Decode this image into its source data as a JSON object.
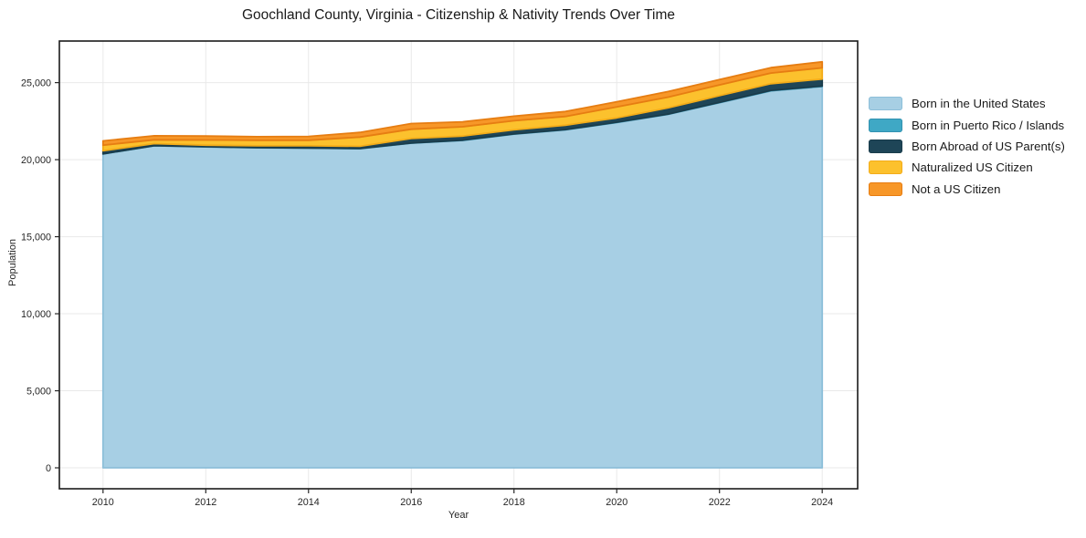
{
  "chart_data": {
    "type": "area",
    "stacked": true,
    "title": "Goochland County, Virginia - Citizenship & Nativity Trends Over Time",
    "xlabel": "Year",
    "ylabel": "Population",
    "x": [
      2010,
      2011,
      2012,
      2013,
      2014,
      2015,
      2016,
      2017,
      2018,
      2019,
      2020,
      2021,
      2022,
      2023,
      2024
    ],
    "series": [
      {
        "name": "Born in the United States",
        "color": "#a7cfe4",
        "edge": "#8dbfd9",
        "values": [
          20370,
          20900,
          20830,
          20770,
          20750,
          20710,
          21070,
          21250,
          21660,
          21940,
          22410,
          22940,
          23700,
          24470,
          24750
        ]
      },
      {
        "name": "Born in Puerto Rico / Islands",
        "color": "#3fa8c5",
        "edge": "#3191b0",
        "values": [
          10,
          10,
          10,
          10,
          10,
          10,
          15,
          15,
          15,
          15,
          20,
          20,
          25,
          30,
          30
        ]
      },
      {
        "name": "Born Abroad of US Parent(s)",
        "color": "#1e4557",
        "edge": "#1a3c4b",
        "values": [
          200,
          130,
          100,
          120,
          140,
          150,
          290,
          270,
          260,
          280,
          280,
          400,
          430,
          430,
          450
        ]
      },
      {
        "name": "Naturalized US Citizen",
        "color": "#fcc12d",
        "edge": "#f3ac19",
        "values": [
          360,
          250,
          340,
          360,
          360,
          600,
          600,
          600,
          590,
          570,
          710,
          700,
          700,
          690,
          730
        ]
      },
      {
        "name": "Not a US Citizen",
        "color": "#f79728",
        "edge": "#e67d12",
        "values": [
          280,
          260,
          250,
          230,
          250,
          300,
          370,
          320,
          300,
          320,
          340,
          360,
          340,
          350,
          390
        ]
      }
    ],
    "x_ticks": [
      2010,
      2012,
      2014,
      2016,
      2018,
      2020,
      2022,
      2024
    ],
    "x_tick_labels": [
      "2010",
      "2012",
      "2014",
      "2016",
      "2018",
      "2020",
      "2022",
      "2024"
    ],
    "y_ticks": [
      0,
      5000,
      10000,
      15000,
      20000,
      25000
    ],
    "y_tick_labels": [
      "0",
      "5,000",
      "10,000",
      "15,000",
      "20,000",
      "25,000"
    ],
    "xlim": [
      2009.15,
      2024.69
    ],
    "ylim": [
      -1360,
      27700
    ],
    "grid": true,
    "legend_position": "right",
    "colors": {
      "grid": "#e9e9e9",
      "spine": "#1a1a1a",
      "tick": "#262626",
      "background": "#ffffff"
    }
  }
}
